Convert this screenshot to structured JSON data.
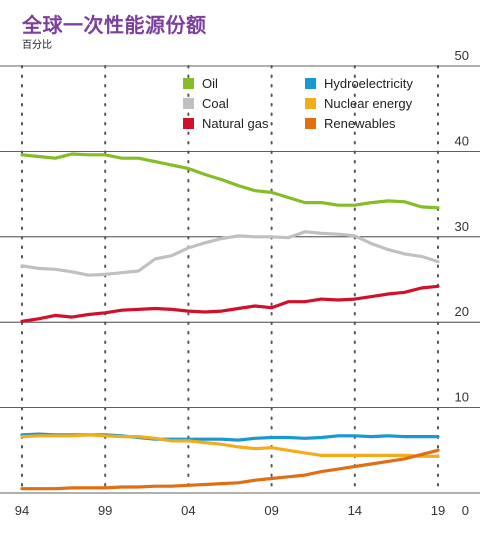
{
  "header": {
    "title": "全球一次性能源份额",
    "subtitle": "百分比"
  },
  "chart_data": {
    "type": "line",
    "title": "全球一次性能源份额",
    "subtitle": "百分比",
    "xlabel": "",
    "ylabel": "",
    "x": [
      1994,
      1995,
      1996,
      1997,
      1998,
      1999,
      2000,
      2001,
      2002,
      2003,
      2004,
      2005,
      2006,
      2007,
      2008,
      2009,
      2010,
      2011,
      2012,
      2013,
      2014,
      2015,
      2016,
      2017,
      2018,
      2019
    ],
    "xticks": [
      {
        "value": 1994,
        "label": "94"
      },
      {
        "value": 1999,
        "label": "99"
      },
      {
        "value": 2004,
        "label": "04"
      },
      {
        "value": 2009,
        "label": "09"
      },
      {
        "value": 2014,
        "label": "14"
      },
      {
        "value": 2019,
        "label": "19"
      }
    ],
    "yticks": [
      {
        "value": 0,
        "label": "0"
      },
      {
        "value": 10,
        "label": "10"
      },
      {
        "value": 20,
        "label": "20"
      },
      {
        "value": 30,
        "label": "30"
      },
      {
        "value": 40,
        "label": "40"
      },
      {
        "value": 50,
        "label": "50"
      }
    ],
    "xlim": [
      1994,
      2019
    ],
    "ylim": [
      0,
      50
    ],
    "grid": "horizontal lines plus dotted verticals at tick years",
    "y_axis_position": "right",
    "legend_position": "top-right",
    "series": [
      {
        "name": "Oil",
        "color": "#86bc25",
        "values": [
          39.6,
          39.4,
          39.2,
          39.7,
          39.6,
          39.6,
          39.2,
          39.2,
          38.8,
          38.4,
          38.0,
          37.3,
          36.7,
          36.0,
          35.4,
          35.2,
          34.6,
          34.0,
          34.0,
          33.7,
          33.7,
          34.0,
          34.2,
          34.1,
          33.5,
          33.4
        ]
      },
      {
        "name": "Coal",
        "color": "#c0c0c0",
        "values": [
          26.6,
          26.3,
          26.2,
          25.9,
          25.5,
          25.6,
          25.8,
          26.0,
          27.4,
          27.8,
          28.7,
          29.3,
          29.8,
          30.1,
          30.0,
          30.0,
          29.9,
          30.6,
          30.4,
          30.3,
          30.1,
          29.2,
          28.5,
          28.0,
          27.7,
          27.1
        ]
      },
      {
        "name": "Natural gas",
        "color": "#d0112b",
        "values": [
          20.1,
          20.4,
          20.8,
          20.6,
          20.9,
          21.1,
          21.4,
          21.5,
          21.6,
          21.5,
          21.3,
          21.2,
          21.3,
          21.6,
          21.9,
          21.7,
          22.4,
          22.4,
          22.7,
          22.6,
          22.7,
          23.0,
          23.3,
          23.5,
          24.0,
          24.2
        ]
      },
      {
        "name": "Hydroelectricity",
        "color": "#1a98d2",
        "values": [
          6.8,
          6.9,
          6.8,
          6.8,
          6.8,
          6.8,
          6.7,
          6.5,
          6.3,
          6.3,
          6.3,
          6.3,
          6.3,
          6.2,
          6.4,
          6.5,
          6.5,
          6.4,
          6.5,
          6.7,
          6.7,
          6.6,
          6.7,
          6.6,
          6.6,
          6.6
        ]
      },
      {
        "name": "Nuclear energy",
        "color": "#f2ac1c",
        "values": [
          6.6,
          6.7,
          6.7,
          6.7,
          6.8,
          6.7,
          6.6,
          6.6,
          6.4,
          6.1,
          6.1,
          5.9,
          5.7,
          5.4,
          5.2,
          5.3,
          5.0,
          4.7,
          4.4,
          4.4,
          4.4,
          4.4,
          4.4,
          4.4,
          4.3,
          4.3
        ]
      },
      {
        "name": "Renewables",
        "color": "#e06e13",
        "values": [
          0.5,
          0.5,
          0.5,
          0.6,
          0.6,
          0.6,
          0.7,
          0.7,
          0.8,
          0.8,
          0.9,
          1.0,
          1.1,
          1.2,
          1.5,
          1.7,
          1.9,
          2.1,
          2.5,
          2.8,
          3.1,
          3.4,
          3.7,
          4.0,
          4.5,
          5.0
        ]
      }
    ]
  }
}
